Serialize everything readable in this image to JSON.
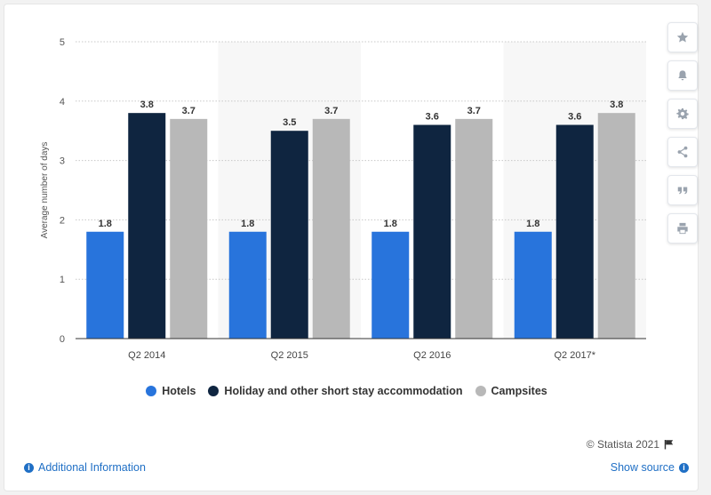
{
  "chart_data": {
    "type": "bar",
    "categories": [
      "Q2 2014",
      "Q2 2015",
      "Q2 2016",
      "Q2 2017*"
    ],
    "series": [
      {
        "name": "Hotels",
        "color": "#2874dc",
        "values": [
          1.8,
          1.8,
          1.8,
          1.8
        ]
      },
      {
        "name": "Holiday and other short stay accommodation",
        "color": "#0f2540",
        "values": [
          3.8,
          3.5,
          3.6,
          3.6
        ]
      },
      {
        "name": "Campsites",
        "color": "#b8b8b8",
        "values": [
          3.7,
          3.7,
          3.7,
          3.8
        ]
      }
    ],
    "ylabel": "Average number of days",
    "ylim": [
      0,
      5
    ],
    "yticks": [
      0,
      1,
      2,
      3,
      4,
      5
    ],
    "grid": true,
    "legend_position": "bottom",
    "data_labels": true
  },
  "legend": {
    "items": [
      {
        "label": "Hotels",
        "color": "#2874dc"
      },
      {
        "label": "Holiday and other short stay accommodation",
        "color": "#0f2540"
      },
      {
        "label": "Campsites",
        "color": "#b8b8b8"
      }
    ]
  },
  "sidebar": {
    "buttons": [
      {
        "icon": "star-icon"
      },
      {
        "icon": "bell-icon"
      },
      {
        "icon": "gear-icon"
      },
      {
        "icon": "share-icon"
      },
      {
        "icon": "quote-icon"
      },
      {
        "icon": "print-icon"
      }
    ]
  },
  "footer": {
    "credit": "© Statista 2021",
    "additional_info": "Additional Information",
    "show_source": "Show source"
  }
}
